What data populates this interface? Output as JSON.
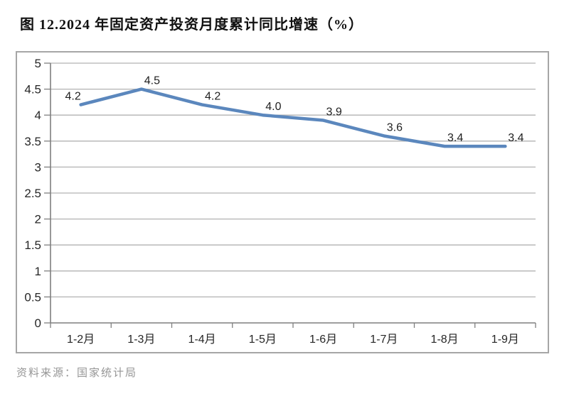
{
  "page": {
    "title": "图 12.2024 年固定资产投资月度累计同比增速（%）",
    "source_note": "资料来源：国家统计局"
  },
  "chart_data": {
    "type": "line",
    "title": "图 12.2024 年固定资产投资月度累计同比增速（%）",
    "categories": [
      "1-2月",
      "1-3月",
      "1-4月",
      "1-5月",
      "1-6月",
      "1-7月",
      "1-8月",
      "1-9月"
    ],
    "values": [
      4.2,
      4.5,
      4.2,
      4.0,
      3.9,
      3.6,
      3.4,
      3.4
    ],
    "data_labels": [
      "4.2",
      "4.5",
      "4.2",
      "4.0",
      "3.9",
      "3.6",
      "3.4",
      "3.4"
    ],
    "y_tick_labels": [
      "5",
      "4.5",
      "4",
      "3.5",
      "3",
      "2.5",
      "2",
      "1.5",
      "1",
      "0.5",
      "0"
    ],
    "y_tick_values": [
      5,
      4.5,
      4,
      3.5,
      3,
      2.5,
      2,
      1.5,
      1,
      0.5,
      0
    ],
    "ylim": [
      0,
      5
    ],
    "y_step": 0.5,
    "xlabel": "",
    "ylabel": "",
    "grid": "horizontal",
    "legend": "none",
    "colors": {
      "line": "#5b87bd",
      "gridline": "#b2b2b2",
      "axis": "#7f7f7f",
      "tick": "#7f7f7f",
      "tick_label": "#262626",
      "data_label": "#1f1f1f",
      "frame_border": "#a6a6a6",
      "title": "#111111",
      "source": "#969696",
      "background": "#ffffff"
    }
  }
}
